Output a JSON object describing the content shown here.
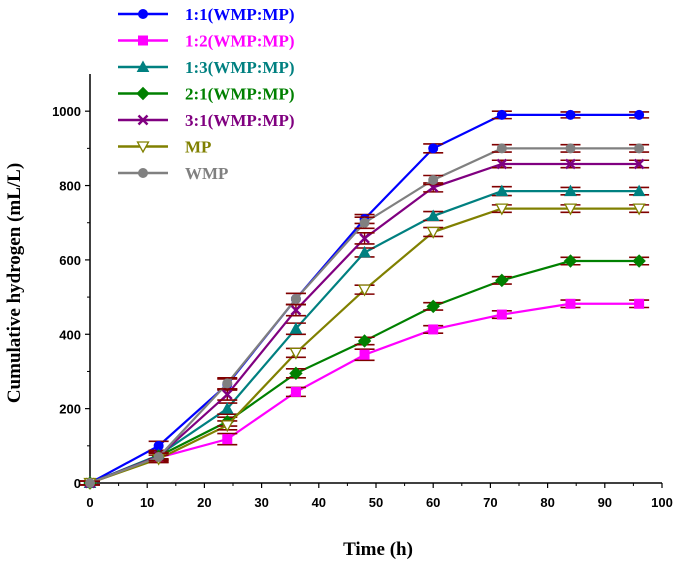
{
  "chart_data": {
    "type": "line",
    "title": "",
    "xlabel": "Time (h)",
    "ylabel": "Cumulative hydrogen (mL/L)",
    "xlim": [
      0,
      100
    ],
    "ylim": [
      0,
      1100
    ],
    "xticks": [
      0,
      10,
      20,
      30,
      40,
      50,
      60,
      70,
      80,
      90,
      100
    ],
    "yticks": [
      0,
      200,
      400,
      600,
      800,
      1000
    ],
    "x": [
      0,
      12,
      24,
      36,
      48,
      60,
      72,
      84,
      96
    ],
    "legend_position": "top-left",
    "series": [
      {
        "name": "1:1(WMP:MP)",
        "color": "#0000ff",
        "marker": "circle",
        "values": [
          0,
          100,
          265,
          495,
          710,
          900,
          990,
          990,
          990
        ],
        "errors": [
          5,
          12,
          15,
          15,
          12,
          12,
          10,
          8,
          8
        ]
      },
      {
        "name": "1:2(WMP:MP)",
        "color": "#ff00ff",
        "marker": "square",
        "values": [
          0,
          68,
          118,
          245,
          345,
          413,
          453,
          482,
          482
        ],
        "errors": [
          5,
          12,
          15,
          12,
          15,
          10,
          10,
          10,
          10
        ]
      },
      {
        "name": "1:3(WMP:MP)",
        "color": "#008080",
        "marker": "triangle",
        "values": [
          0,
          75,
          200,
          415,
          620,
          718,
          785,
          785,
          785
        ],
        "errors": [
          5,
          10,
          15,
          15,
          12,
          12,
          12,
          10,
          10
        ]
      },
      {
        "name": "2:1(WMP:MP)",
        "color": "#008000",
        "marker": "diamond",
        "values": [
          0,
          72,
          165,
          295,
          382,
          475,
          545,
          597,
          597
        ],
        "errors": [
          5,
          10,
          12,
          12,
          10,
          10,
          10,
          10,
          10
        ]
      },
      {
        "name": "3:1(WMP:MP)",
        "color": "#800080",
        "marker": "x",
        "values": [
          0,
          72,
          238,
          465,
          658,
          795,
          858,
          858,
          858
        ],
        "errors": [
          5,
          10,
          15,
          15,
          15,
          12,
          10,
          10,
          10
        ]
      },
      {
        "name": "MP",
        "color": "#808000",
        "marker": "triangle-down-open",
        "values": [
          0,
          65,
          155,
          350,
          520,
          675,
          738,
          738,
          738
        ],
        "errors": [
          5,
          10,
          12,
          12,
          12,
          12,
          10,
          10,
          10
        ]
      },
      {
        "name": "WMP",
        "color": "#808080",
        "marker": "circle",
        "values": [
          0,
          70,
          268,
          495,
          700,
          815,
          900,
          900,
          900
        ],
        "errors": [
          5,
          10,
          15,
          15,
          15,
          12,
          10,
          10,
          10
        ]
      }
    ],
    "errorbar_color": "#800000"
  }
}
